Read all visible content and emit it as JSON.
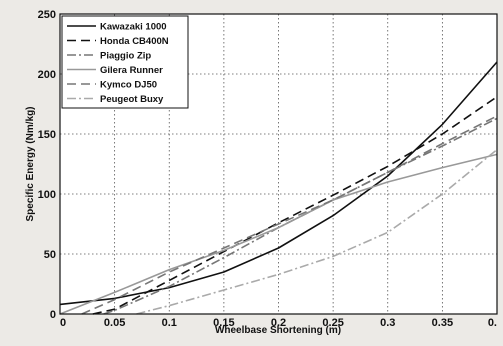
{
  "chart_data": {
    "type": "line",
    "title": "",
    "xlabel": "Wheelbase Shortening (m)",
    "ylabel": "Specific Energy (Nm/kg)",
    "xlim": [
      0,
      0.4
    ],
    "ylim": [
      0,
      250
    ],
    "xticks": [
      "0",
      "0.05",
      "0.1",
      "0.15",
      "0.2",
      "0.25",
      "0.3",
      "0.35",
      "0."
    ],
    "yticks": [
      "0",
      "50",
      "100",
      "150",
      "200",
      "250"
    ],
    "grid": true,
    "legend_position": "top-left",
    "series": [
      {
        "name": "Kawazaki 1000",
        "style": "solid",
        "color": "#111111",
        "x": [
          0,
          0.05,
          0.1,
          0.15,
          0.2,
          0.25,
          0.3,
          0.35,
          0.4
        ],
        "y": [
          8,
          13,
          22,
          35,
          55,
          82,
          115,
          158,
          210
        ]
      },
      {
        "name": "Honda CB400N",
        "style": "dashed",
        "color": "#111111",
        "x": [
          0.03,
          0.05,
          0.1,
          0.15,
          0.2,
          0.25,
          0.3,
          0.35,
          0.4
        ],
        "y": [
          0,
          4,
          28,
          52,
          76,
          99,
          123,
          150,
          181
        ]
      },
      {
        "name": "Piaggio Zip",
        "style": "dashdot",
        "color": "#777777",
        "x": [
          0.04,
          0.05,
          0.1,
          0.15,
          0.2,
          0.25,
          0.3,
          0.35,
          0.4
        ],
        "y": [
          0,
          3,
          23,
          47,
          72,
          95,
          118,
          140,
          163
        ]
      },
      {
        "name": "Gilera Runner",
        "style": "solid",
        "color": "#999999",
        "x": [
          0,
          0.05,
          0.1,
          0.15,
          0.2,
          0.25,
          0.3,
          0.35,
          0.4
        ],
        "y": [
          0,
          18,
          37,
          53,
          72,
          95,
          110,
          122,
          133
        ]
      },
      {
        "name": "Kymco DJ50",
        "style": "dashed",
        "color": "#777777",
        "x": [
          0.02,
          0.05,
          0.1,
          0.15,
          0.2,
          0.25,
          0.3,
          0.35,
          0.4
        ],
        "y": [
          0,
          12,
          35,
          55,
          75,
          95,
          118,
          142,
          165
        ]
      },
      {
        "name": "Peugeot Buxy",
        "style": "dashdot",
        "color": "#aaaaaa",
        "x": [
          0.07,
          0.1,
          0.15,
          0.2,
          0.25,
          0.3,
          0.35,
          0.4
        ],
        "y": [
          0,
          7,
          20,
          33,
          48,
          68,
          100,
          137
        ]
      }
    ]
  }
}
